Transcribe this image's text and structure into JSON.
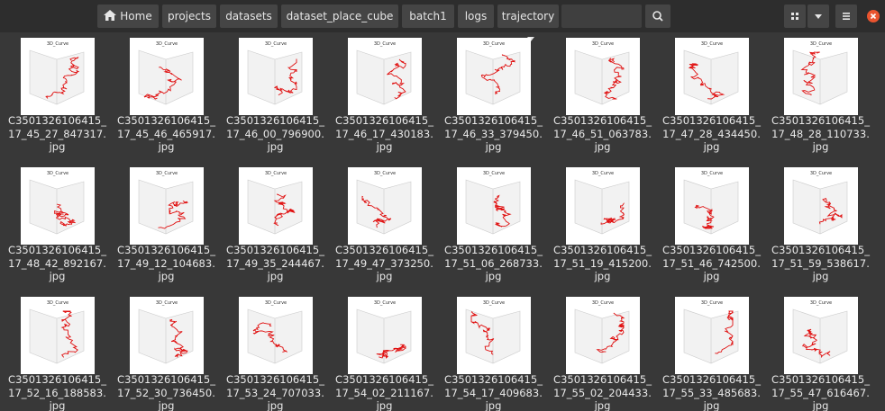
{
  "toolbar": {
    "breadcrumbs": [
      "Home",
      "projects",
      "datasets",
      "dataset_place_cube",
      "batch1",
      "logs",
      "trajectory"
    ]
  },
  "thumbnail_title": "3D_Curve",
  "files": [
    {
      "lines": [
        "C3501326106415_",
        "17_45_27_847317.",
        "jpg"
      ]
    },
    {
      "lines": [
        "C3501326106415_",
        "17_45_46_465917.",
        "jpg"
      ]
    },
    {
      "lines": [
        "C3501326106415_",
        "17_46_00_796900.",
        "jpg"
      ]
    },
    {
      "lines": [
        "C3501326106415_",
        "17_46_17_430183.",
        "jpg"
      ]
    },
    {
      "lines": [
        "C3501326106415_",
        "17_46_33_379450.",
        "jpg"
      ]
    },
    {
      "lines": [
        "C3501326106415_",
        "17_46_51_063783.",
        "jpg"
      ]
    },
    {
      "lines": [
        "C3501326106415_",
        "17_47_28_434450.",
        "jpg"
      ]
    },
    {
      "lines": [
        "C3501326106415_",
        "17_48_28_110733.",
        "jpg"
      ]
    },
    {
      "lines": [
        "C3501326106415_",
        "17_48_42_892167.",
        "jpg"
      ]
    },
    {
      "lines": [
        "C3501326106415_",
        "17_49_12_104683.",
        "jpg"
      ]
    },
    {
      "lines": [
        "C3501326106415_",
        "17_49_35_244467.",
        "jpg"
      ]
    },
    {
      "lines": [
        "C3501326106415_",
        "17_49_47_373250.",
        "jpg"
      ]
    },
    {
      "lines": [
        "C3501326106415_",
        "17_51_06_268733.",
        "jpg"
      ]
    },
    {
      "lines": [
        "C3501326106415_",
        "17_51_19_415200.",
        "jpg"
      ]
    },
    {
      "lines": [
        "C3501326106415_",
        "17_51_46_742500.",
        "jpg"
      ]
    },
    {
      "lines": [
        "C3501326106415_",
        "17_51_59_538617.",
        "jpg"
      ]
    },
    {
      "lines": [
        "C3501326106415_",
        "17_52_16_188583.",
        "jpg"
      ]
    },
    {
      "lines": [
        "C3501326106415_",
        "17_52_30_736450.",
        "jpg"
      ]
    },
    {
      "lines": [
        "C3501326106415_",
        "17_53_24_707033.",
        "jpg"
      ]
    },
    {
      "lines": [
        "C3501326106415_",
        "17_54_02_211167.",
        "jpg"
      ]
    },
    {
      "lines": [
        "C3501326106415_",
        "17_54_17_409683.",
        "jpg"
      ]
    },
    {
      "lines": [
        "C3501326106415_",
        "17_55_02_204433.",
        "jpg"
      ]
    },
    {
      "lines": [
        "C3501326106415_",
        "17_55_33_485683.",
        "jpg"
      ]
    },
    {
      "lines": [
        "C3501326106415_",
        "17_55_47_616467.",
        "jpg"
      ]
    }
  ]
}
